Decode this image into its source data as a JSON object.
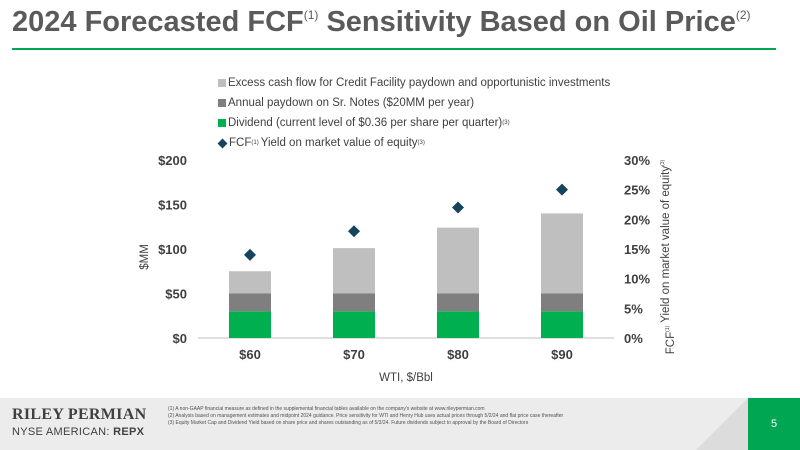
{
  "header": {
    "title_part1": "2024 Forecasted FCF",
    "title_sup1": "(1)",
    "title_part2": " Sensitivity Based on Oil Price",
    "title_sup2": "(2)"
  },
  "legend": {
    "items": [
      {
        "label": "Excess cash flow for Credit Facility paydown and opportunistic investments",
        "sup": "",
        "color": "#bfbfbf",
        "marker": "square"
      },
      {
        "label": "Annual paydown on Sr. Notes ($20MM per year)",
        "sup": "",
        "color": "#7f7f7f",
        "marker": "square"
      },
      {
        "label": "Dividend (current level of $0.36 per share per quarter)",
        "sup": "(3)",
        "color": "#00b050",
        "marker": "square"
      },
      {
        "label_pre": "FCF",
        "label_sup_mid": "(1)",
        "label": "Yield on market value of equity",
        "sup": "(3)",
        "color": "#14445e",
        "marker": "diamond"
      }
    ]
  },
  "chart_data": {
    "type": "bar",
    "stacked": true,
    "categories": [
      "$60",
      "$70",
      "$80",
      "$90"
    ],
    "series": [
      {
        "name": "Dividend (current level of $0.36 per share per quarter)",
        "values": [
          30,
          30,
          30,
          30
        ],
        "color": "#00b050",
        "axis": "left"
      },
      {
        "name": "Annual paydown on Sr. Notes ($20MM per year)",
        "values": [
          20,
          20,
          20,
          20
        ],
        "color": "#7f7f7f",
        "axis": "left"
      },
      {
        "name": "Excess cash flow for Credit Facility paydown and opportunistic investments",
        "values": [
          25,
          51,
          74,
          90
        ],
        "color": "#bfbfbf",
        "axis": "left"
      },
      {
        "name": "FCF Yield on market value of equity",
        "values": [
          14,
          18,
          22,
          25
        ],
        "color": "#14445e",
        "axis": "right",
        "marker": "diamond"
      }
    ],
    "xlabel": "WTI, $/Bbl",
    "ylabel": "$MM",
    "y2label_pre": "FCF",
    "y2label_sup1": "(1)",
    "y2label": "Yield on market value of equity",
    "y2label_sup2": "(3)",
    "ylim": [
      0,
      200
    ],
    "y2lim": [
      0,
      30
    ],
    "yticks": [
      "$0",
      "$50",
      "$100",
      "$150",
      "$200"
    ],
    "y2ticks": [
      "0%",
      "5%",
      "10%",
      "15%",
      "20%",
      "25%",
      "30%"
    ],
    "grid": false,
    "legend_position": "top"
  },
  "footer": {
    "company": "RILEY PERMIAN",
    "ticker_prefix": "NYSE AMERICAN: ",
    "ticker": "REPX",
    "page": "5",
    "footnotes": [
      "(1)  A non-GAAP financial measure as defined in the supplemental financial tables available on the company's website at www.rileypermian.com",
      "(2)  Analysis based on management estimates and midpoint 2024 guidance. Price sensitivity for WTI and Henry Hub uses actual prices through 5/2/24 and flat price case thereafter",
      "(3)  Equity Market Cap and Dividend Yield based on share price and shares outstanding as of 5/3/24. Future dividends subject to approval by the Board of Directors"
    ]
  }
}
